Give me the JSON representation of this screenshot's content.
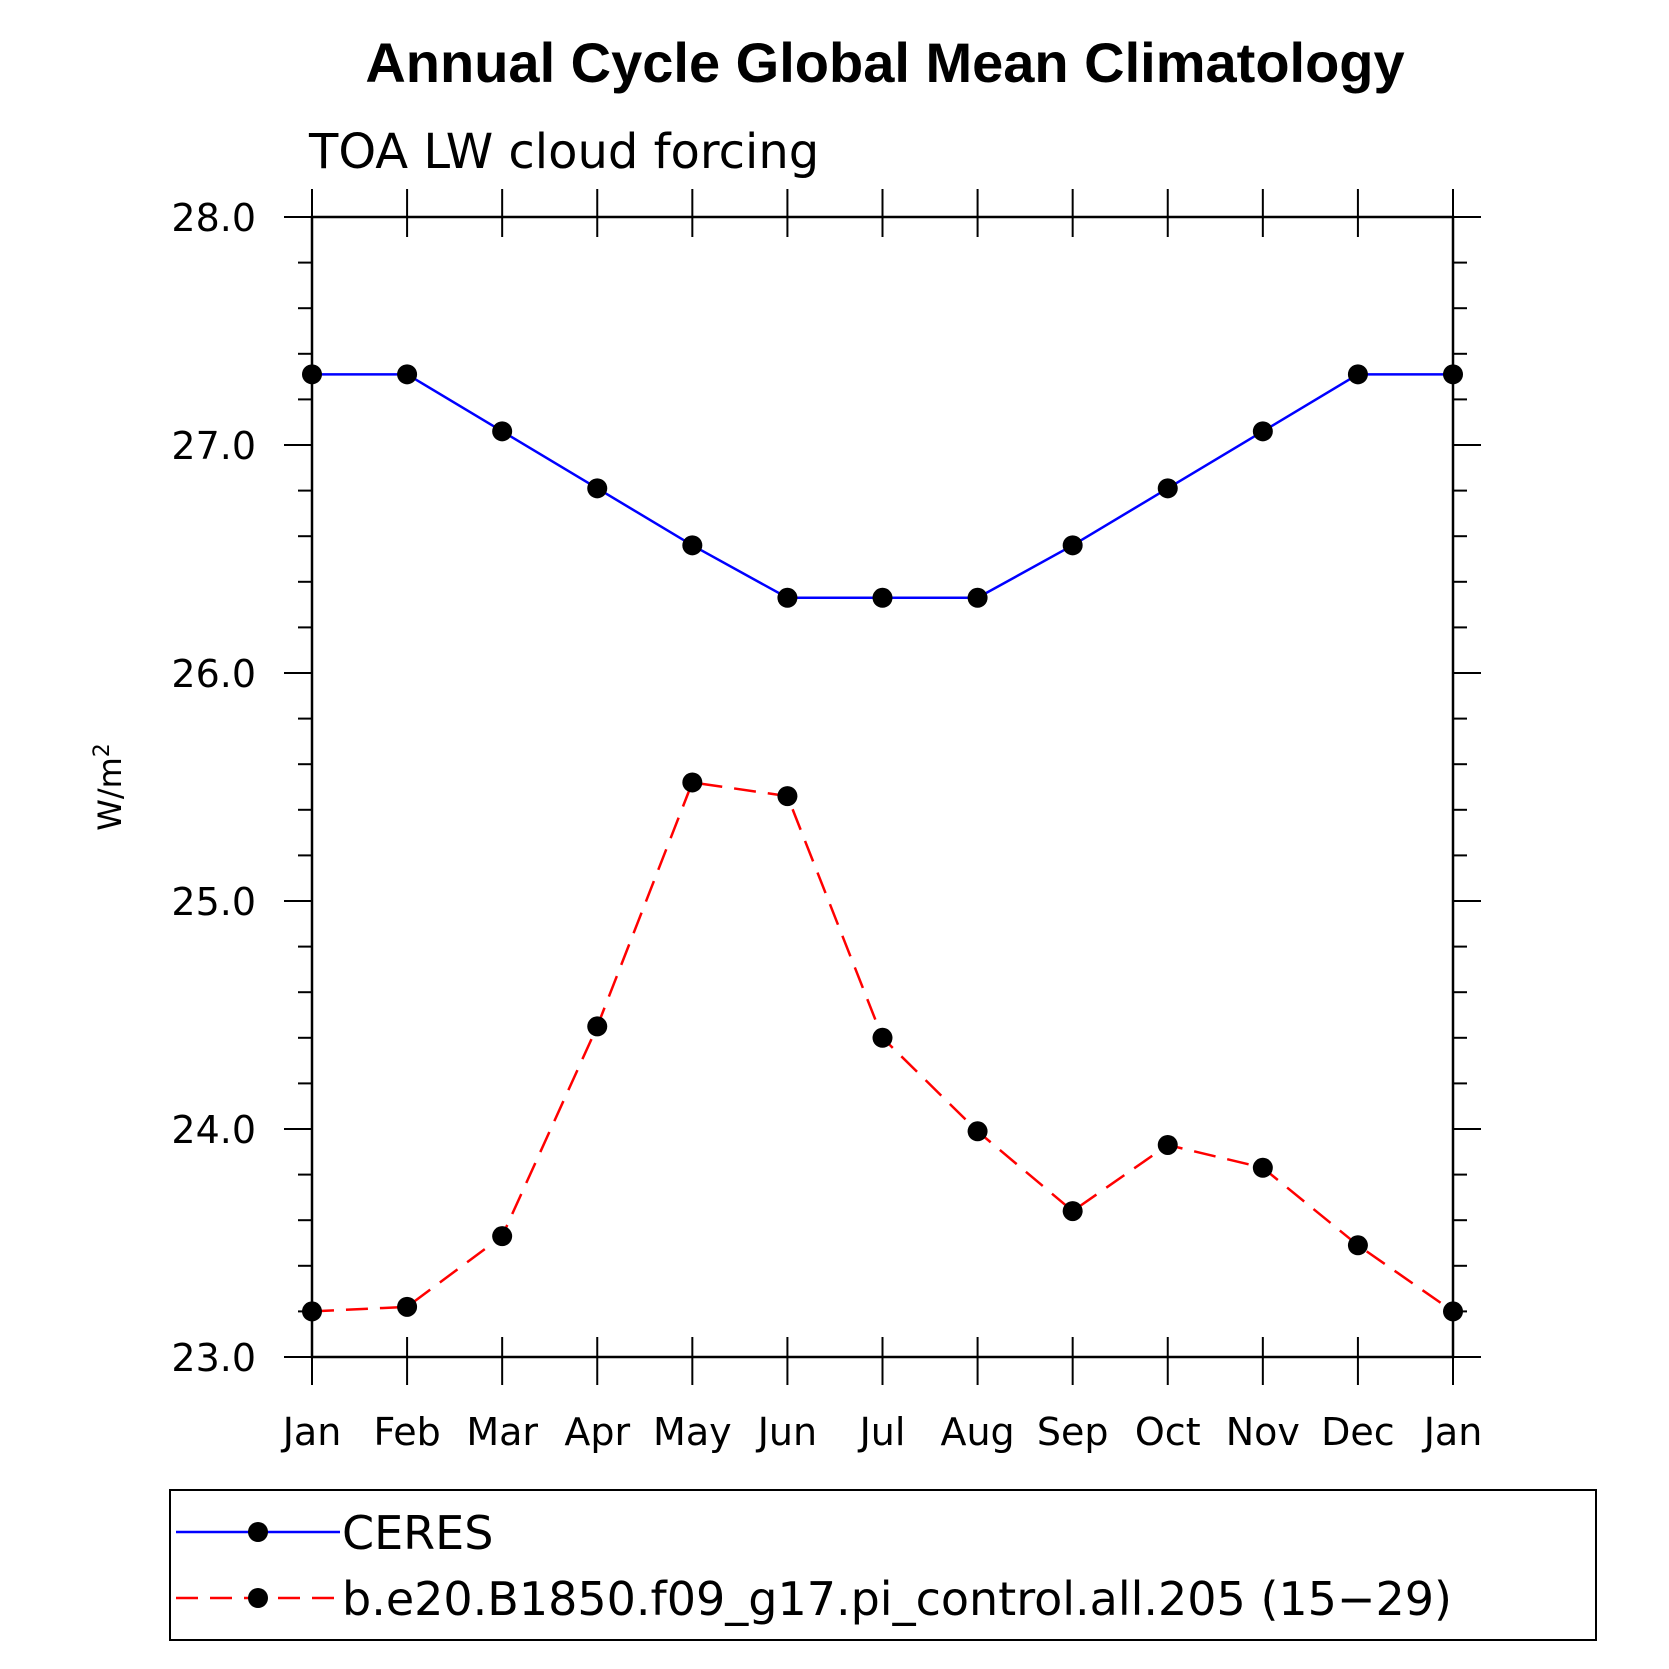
{
  "chart_data": {
    "type": "line",
    "title": "Annual Cycle Global Mean Climatology",
    "subtitle": "TOA LW cloud forcing",
    "ylabel_base": "W/m",
    "ylabel_sup": "2",
    "xlabel": "",
    "categories": [
      "Jan",
      "Feb",
      "Mar",
      "Apr",
      "May",
      "Jun",
      "Jul",
      "Aug",
      "Sep",
      "Oct",
      "Nov",
      "Dec",
      "Jan"
    ],
    "ylim": [
      23.0,
      28.0
    ],
    "yticks": [
      "23.0",
      "24.0",
      "25.0",
      "26.0",
      "27.0",
      "28.0"
    ],
    "series": [
      {
        "name": "CERES",
        "color": "#0000ff",
        "style": "solid",
        "marker": "filled-circle",
        "values": [
          27.31,
          27.31,
          27.06,
          26.81,
          26.56,
          26.33,
          26.33,
          26.33,
          26.56,
          26.81,
          27.06,
          27.31,
          27.31
        ]
      },
      {
        "name": "b.e20.B1850.f09_g17.pi_control.all.205 (15−29)",
        "color": "#ff0000",
        "style": "dashed",
        "marker": "filled-circle",
        "values": [
          23.2,
          23.22,
          23.53,
          24.45,
          25.52,
          25.46,
          24.4,
          23.99,
          23.64,
          23.93,
          23.83,
          23.49,
          23.2
        ]
      }
    ],
    "grid": false,
    "legend_position": "bottom"
  }
}
